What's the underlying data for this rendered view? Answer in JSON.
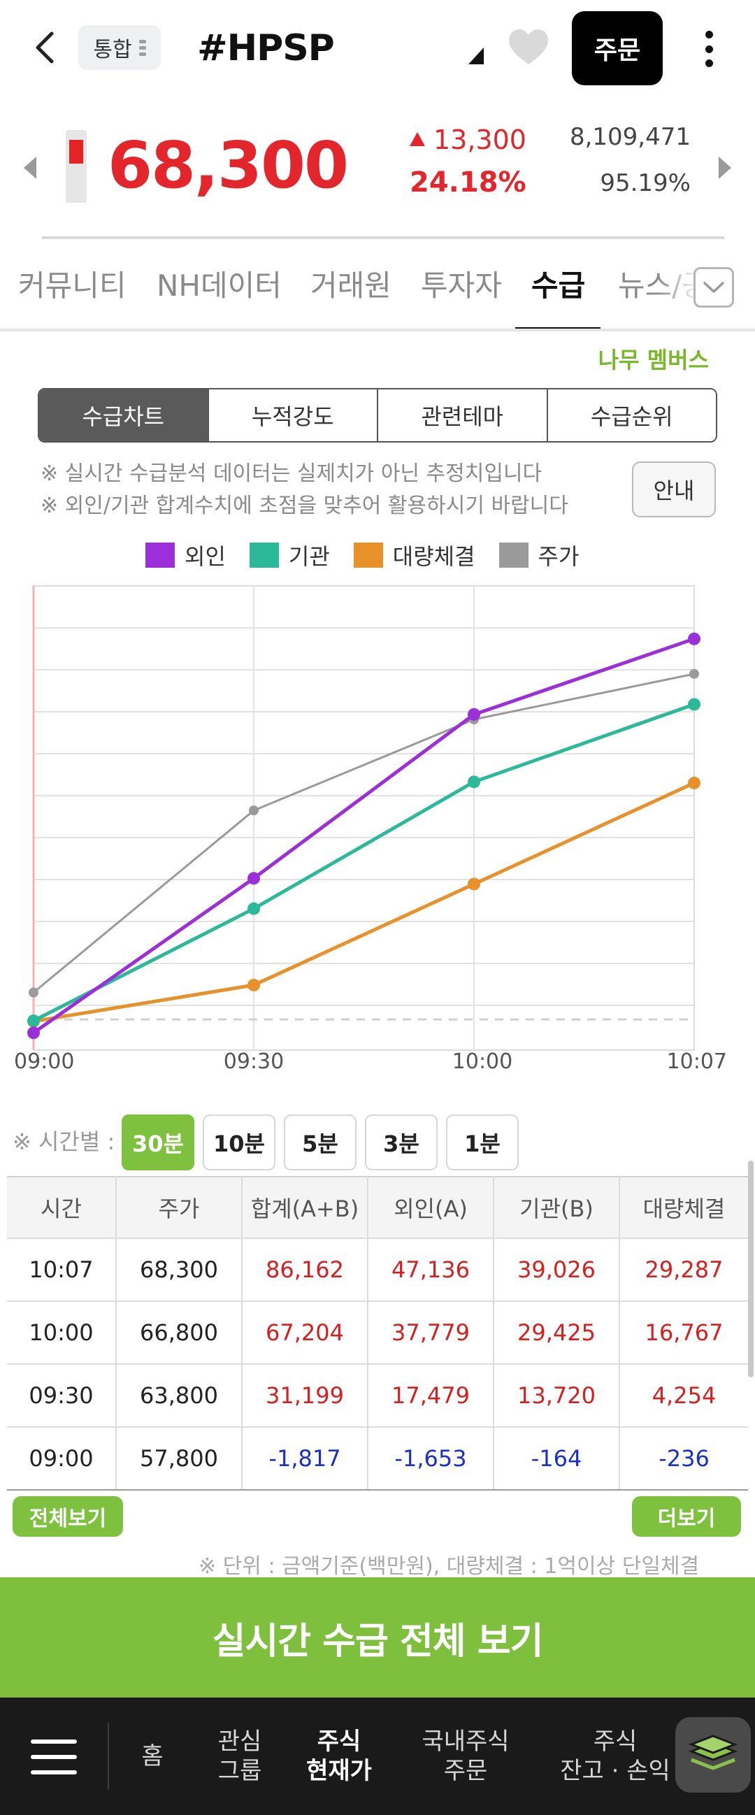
{
  "header": {
    "market": "통합",
    "title": "#HPSP",
    "order_label": "주문"
  },
  "quote": {
    "price": "68,300",
    "change": "13,300",
    "change_pct": "24.18%",
    "volume": "8,109,471",
    "volume_pct": "95.19%"
  },
  "tabs": [
    {
      "label": "커뮤니티"
    },
    {
      "label": "NH데이터"
    },
    {
      "label": "거래원"
    },
    {
      "label": "투자자"
    },
    {
      "label": "수급"
    },
    {
      "label": "뉴스/공시"
    }
  ],
  "brand_label": "나무 멤버스",
  "segments": [
    {
      "label": "수급차트"
    },
    {
      "label": "누적강도"
    },
    {
      "label": "관련테마"
    },
    {
      "label": "수급순위"
    }
  ],
  "notices": [
    "※ 실시간 수급분석 데이터는 실제치가 아닌 추정치입니다",
    "※ 외인/기관 합계수치에 초점을 맞추어 활용하시기 바랍니다"
  ],
  "guide_label": "안내",
  "colors": {
    "foreign": "#9b30d9",
    "institution": "#2bb99a",
    "block": "#e8912a",
    "price": "#9a9a9a",
    "accent_green": "#7ec13e",
    "up_red": "#e3262b",
    "down_blue": "#1a2fc9"
  },
  "chart_data": {
    "type": "line",
    "x": [
      "09:00",
      "09:30",
      "10:00",
      "10:07"
    ],
    "series": [
      {
        "name": "외인",
        "values": [
          -1653,
          17479,
          37779,
          47136
        ]
      },
      {
        "name": "기관",
        "values": [
          -164,
          13720,
          29425,
          39026
        ]
      },
      {
        "name": "대량체결",
        "values": [
          -236,
          4254,
          16767,
          29287
        ]
      },
      {
        "name": "주가",
        "values": [
          57800,
          63800,
          66800,
          68300
        ]
      }
    ],
    "legend_position": "top",
    "grid": true,
    "price_axis_range": [
      55900,
      71200
    ],
    "flow_axis_range": [
      -3800,
      53700
    ]
  },
  "interval": {
    "label": "※ 시간별 :",
    "options": [
      "30분",
      "10분",
      "5분",
      "3분",
      "1분"
    ],
    "selected": "30분"
  },
  "table": {
    "headers": [
      "시간",
      "주가",
      "합계(A+B)",
      "외인(A)",
      "기관(B)",
      "대량체결"
    ],
    "rows": [
      [
        "10:07",
        "68,300",
        "86,162",
        "47,136",
        "39,026",
        "29,287"
      ],
      [
        "10:00",
        "66,800",
        "67,204",
        "37,779",
        "29,425",
        "16,767"
      ],
      [
        "09:30",
        "63,800",
        "31,199",
        "17,479",
        "13,720",
        "4,254"
      ],
      [
        "09:00",
        "57,800",
        "-1,817",
        "-1,653",
        "-164",
        "-236"
      ]
    ]
  },
  "view_all_label": "전체보기",
  "more_label": "더보기",
  "unit_note": "※ 단위 : 금액기준(백만원), 대량체결 : 1억이상 단일체결",
  "cta_label": "실시간 수급 전체 보기",
  "bottom_nav": [
    {
      "line1": "홈",
      "line2": ""
    },
    {
      "line1": "관심",
      "line2": "그룹"
    },
    {
      "line1": "주식",
      "line2": "현재가"
    },
    {
      "line1": "국내주식",
      "line2": "주문"
    },
    {
      "line1": "주식",
      "line2": "잔고 · 손익"
    }
  ]
}
